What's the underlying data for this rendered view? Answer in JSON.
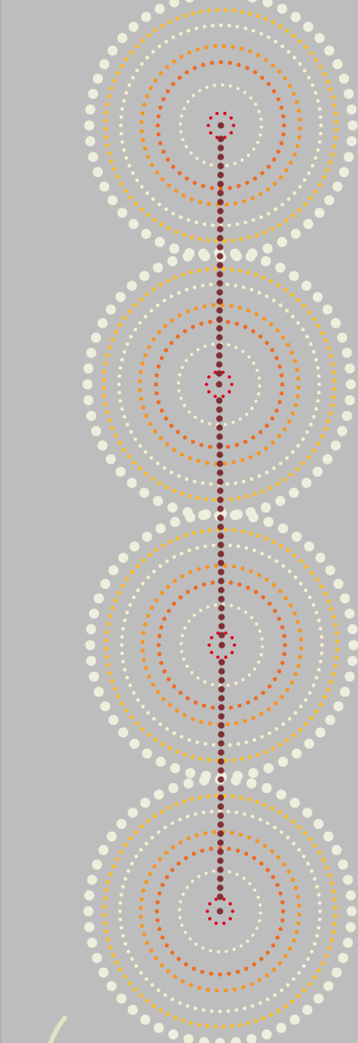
{
  "artwork": {
    "background_color": "#bdbdbd",
    "motif": "concentric-dot-circles",
    "circle_count": 4,
    "ring_colors": {
      "outer": "#eeeedd",
      "yellow": "#f9bd2c",
      "cream": "#f7eecb",
      "orange": "#f79423",
      "red_orange": "#ee6b24",
      "center": "#e0001a"
    },
    "connector_color": "#7f3034",
    "stem_color": "#dfe4c4"
  }
}
